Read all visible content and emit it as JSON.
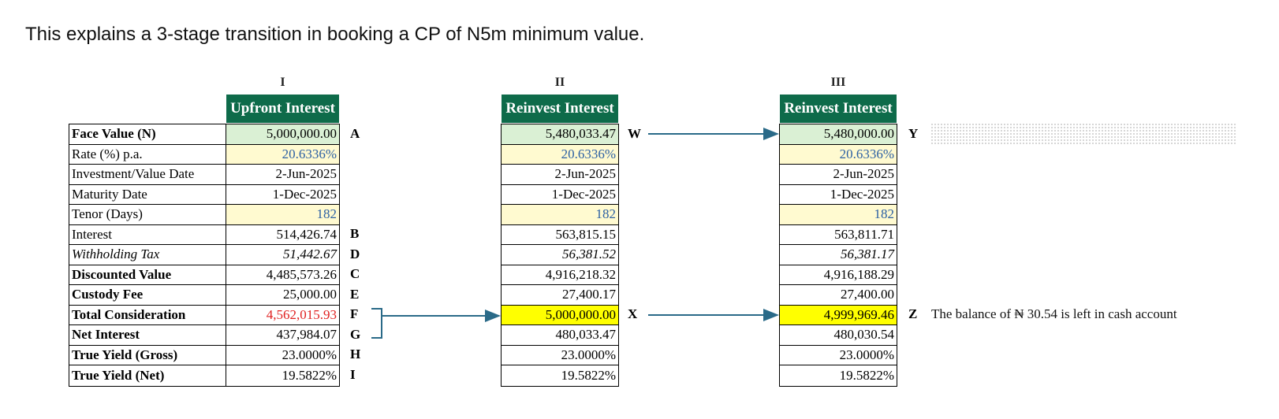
{
  "heading": "This explains a 3-stage transition in booking a CP of N5m minimum value.",
  "row_labels": [
    {
      "text": "Face Value (N)",
      "style": "bold"
    },
    {
      "text": "Rate (%) p.a.",
      "style": "normal"
    },
    {
      "text": "Investment/Value Date",
      "style": "normal"
    },
    {
      "text": "Maturity Date",
      "style": "normal"
    },
    {
      "text": "Tenor (Days)",
      "style": "normal"
    },
    {
      "text": "Interest",
      "style": "normal"
    },
    {
      "text": "Withholding Tax",
      "style": "italic"
    },
    {
      "text": "Discounted Value",
      "style": "bold"
    },
    {
      "text": "Custody Fee",
      "style": "bold"
    },
    {
      "text": "Total Consideration",
      "style": "bold"
    },
    {
      "text": "Net Interest",
      "style": "bold"
    },
    {
      "text": "True Yield (Gross)",
      "style": "bold"
    },
    {
      "text": "True Yield (Net)",
      "style": "bold"
    }
  ],
  "columns": [
    {
      "numeral": "I",
      "header": "Upfront Interest",
      "values": [
        "5,000,000.00",
        "20.6336%",
        "2-Jun-2025",
        "1-Dec-2025",
        "182",
        "514,426.74",
        "51,442.67",
        "4,485,573.26",
        "25,000.00",
        "4,562,015.93",
        "437,984.07",
        "23.0000%",
        "19.5822%"
      ],
      "letters": [
        "A",
        "",
        "",
        "",
        "",
        "B",
        "D",
        "C",
        "E",
        "F",
        "G",
        "H",
        "I"
      ]
    },
    {
      "numeral": "II",
      "header": "Reinvest Interest",
      "values": [
        "5,480,033.47",
        "20.6336%",
        "2-Jun-2025",
        "1-Dec-2025",
        "182",
        "563,815.15",
        "56,381.52",
        "4,916,218.32",
        "27,400.17",
        "5,000,000.00",
        "480,033.47",
        "23.0000%",
        "19.5822%"
      ],
      "letters": [
        "W",
        "",
        "",
        "",
        "",
        "",
        "",
        "",
        "",
        "X",
        "",
        "",
        ""
      ]
    },
    {
      "numeral": "III",
      "header": "Reinvest Interest",
      "values": [
        "5,480,000.00",
        "20.6336%",
        "2-Jun-2025",
        "1-Dec-2025",
        "182",
        "563,811.71",
        "56,381.17",
        "4,916,188.29",
        "27,400.00",
        "4,999,969.46",
        "480,030.54",
        "23.0000%",
        "19.5822%"
      ],
      "letters": [
        "Y",
        "",
        "",
        "",
        "",
        "",
        "",
        "",
        "",
        "Z",
        "",
        "",
        ""
      ]
    }
  ],
  "note": "The balance of ₦ 30.54 is left in cash account",
  "colors": {
    "header_green": "#0e6b4a",
    "input_blue": "#2b5fa3",
    "highlight_yellow": "#ffff00",
    "face_value_green": "#daf0d4",
    "input_cream": "#fffad0",
    "total_red": "#e02020",
    "arrow": "#2a6a88"
  }
}
